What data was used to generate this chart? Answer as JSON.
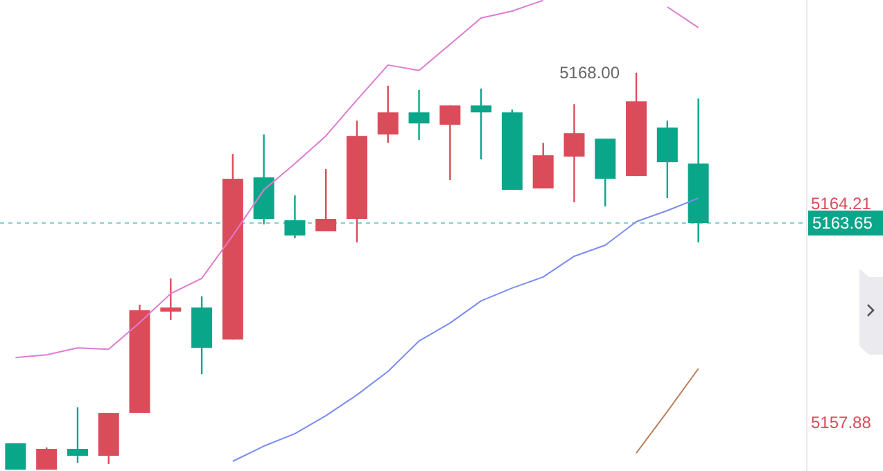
{
  "chart_data": {
    "type": "candlestick",
    "categories": [
      null,
      null,
      null,
      null,
      null,
      null,
      null,
      null,
      null,
      null,
      null,
      null,
      null,
      null,
      null,
      null,
      null,
      null,
      null,
      null,
      null,
      null,
      null
    ],
    "ohlc": [
      [
        5157.28,
        5157.28,
        5156.52,
        5156.52
      ],
      [
        5156.52,
        5157.16,
        5156.52,
        5157.12
      ],
      [
        5157.12,
        5158.32,
        5156.72,
        5156.92
      ],
      [
        5156.92,
        5158.16,
        5156.68,
        5158.16
      ],
      [
        5158.16,
        5161.29,
        5158.16,
        5161.13
      ],
      [
        5161.09,
        5162.05,
        5160.85,
        5161.21
      ],
      [
        5161.21,
        5161.53,
        5159.28,
        5160.04
      ],
      [
        5160.28,
        5165.65,
        5160.28,
        5164.93
      ],
      [
        5164.97,
        5166.21,
        5163.61,
        5163.77
      ],
      [
        5163.73,
        5164.45,
        5163.21,
        5163.29
      ],
      [
        5163.41,
        5165.21,
        5163.41,
        5163.77
      ],
      [
        5163.77,
        5166.61,
        5163.09,
        5166.17
      ],
      [
        5166.21,
        5167.62,
        5165.97,
        5166.85
      ],
      [
        5166.85,
        5167.5,
        5166.05,
        5166.53
      ],
      [
        5166.49,
        5167.05,
        5164.89,
        5167.05
      ],
      [
        5167.05,
        5167.54,
        5165.49,
        5166.85
      ],
      [
        5166.85,
        5166.93,
        5164.61,
        5164.61
      ],
      [
        5164.65,
        5165.97,
        5164.65,
        5165.61
      ],
      [
        5165.57,
        5167.09,
        5164.25,
        5166.25
      ],
      [
        5166.09,
        5166.09,
        5164.13,
        5164.93
      ],
      [
        5165.01,
        5168.0,
        5165.01,
        5167.17
      ],
      [
        5166.41,
        5166.61,
        5164.37,
        5165.41
      ],
      [
        5165.37,
        5167.25,
        5163.09,
        5163.65
      ]
    ],
    "colors": [
      "#0aa68a",
      "#db4c5a",
      "#0aa68a",
      "#db4c5a",
      "#db4c5a",
      "#db4c5a",
      "#0aa68a",
      "#db4c5a",
      "#0aa68a",
      "#0aa68a",
      "#db4c5a",
      "#db4c5a",
      "#db4c5a",
      "#0aa68a",
      "#db4c5a",
      "#0aa68a",
      "#0aa68a",
      "#db4c5a",
      "#db4c5a",
      "#0aa68a",
      "#db4c5a",
      "#0aa68a",
      "#0aa68a"
    ],
    "series": [
      {
        "type": "line",
        "color": "#e07bd0",
        "values": [
          5159.76,
          5159.84,
          5160.04,
          5160.0,
          5160.77,
          5161.61,
          5162.05,
          5163.29,
          5164.61,
          5165.37,
          5166.17,
          5167.21,
          5168.22,
          5168.06,
          5168.82,
          5169.58,
          5169.78,
          5170.09,
          null,
          null,
          null,
          5169.9,
          5169.3
        ]
      },
      {
        "type": "line",
        "color": "#7b8cf0",
        "values": [
          null,
          null,
          null,
          null,
          null,
          null,
          null,
          5156.76,
          5157.2,
          5157.56,
          5158.08,
          5158.68,
          5159.36,
          5160.24,
          5160.76,
          5161.4,
          5161.77,
          5162.09,
          5162.69,
          5163.01,
          5163.69,
          5164.01,
          5164.37
        ]
      },
      {
        "type": "line",
        "color": "#b8805a",
        "values": [
          null,
          null,
          null,
          null,
          null,
          null,
          null,
          null,
          null,
          null,
          null,
          null,
          null,
          null,
          null,
          null,
          null,
          null,
          null,
          null,
          5157.0,
          5158.2,
          5159.44
        ]
      }
    ],
    "ylim": [
      5156.48,
      5170.1
    ],
    "yticks": [
      5164.21,
      5157.88
    ],
    "ref_lines": [
      {
        "axis": "y",
        "value": 5163.65,
        "label": "5163.65",
        "color": "#0aa68a",
        "line_style": "dashed"
      }
    ],
    "annotations": [
      "5168.00"
    ],
    "grid": false
  }
}
